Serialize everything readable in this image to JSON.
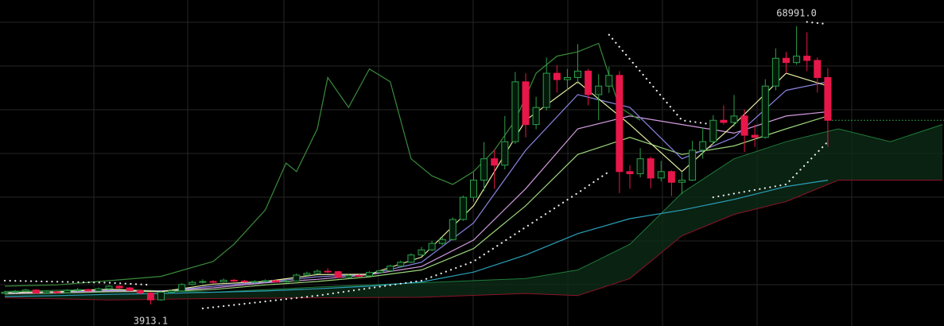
{
  "chart_data": {
    "type": "candlestick",
    "high_label": "68991.0",
    "low_label": "3913.1",
    "up_color": "#2e9e4a",
    "down_color": "#e8174a",
    "open": [
      6500,
      6800,
      7000,
      7300,
      6600,
      6900,
      6700,
      7200,
      7400,
      7100,
      7600,
      8200,
      7800,
      7200,
      6600,
      5000,
      6800,
      7100,
      8600,
      9100,
      9300,
      9200,
      9600,
      9400,
      9200,
      9300,
      9500,
      9200,
      9400,
      10800,
      11200,
      11700,
      11600,
      10300,
      10700,
      10600,
      11400,
      11800,
      12900,
      13800,
      15500,
      16700,
      18200,
      19100,
      23800,
      29000,
      33000,
      38000,
      36500,
      42000,
      56000,
      46000,
      50000,
      58000,
      56500,
      57000,
      58500,
      53000,
      55000,
      57500,
      35000,
      34500,
      38000,
      33500,
      35000,
      32500,
      33000,
      40000,
      42000,
      47000,
      46500,
      48000,
      43500,
      43000,
      55000,
      61500,
      60500,
      62000,
      61000,
      57000
    ],
    "high": [
      7100,
      7300,
      7600,
      7500,
      7200,
      7100,
      7500,
      7800,
      7600,
      7900,
      8500,
      8400,
      8000,
      7400,
      6800,
      7000,
      7400,
      8900,
      9500,
      9800,
      9600,
      10000,
      9900,
      9700,
      9600,
      9800,
      9700,
      9700,
      11200,
      11600,
      12100,
      12400,
      11800,
      11000,
      11000,
      11700,
      12000,
      13200,
      14200,
      15900,
      17400,
      18800,
      19800,
      24300,
      29400,
      34800,
      41900,
      40100,
      48000,
      58300,
      58000,
      52500,
      61700,
      59900,
      59000,
      64800,
      59000,
      57800,
      59500,
      58500,
      36500,
      40500,
      38500,
      37500,
      35300,
      35000,
      42200,
      45300,
      48200,
      50500,
      52900,
      49500,
      46000,
      56600,
      63800,
      63000,
      68991,
      67600,
      61700,
      59200
    ],
    "low": [
      6300,
      6600,
      6800,
      6400,
      6400,
      6500,
      6600,
      7000,
      6900,
      7000,
      7400,
      7500,
      7000,
      6300,
      3913.1,
      4800,
      6500,
      6900,
      8400,
      8800,
      8900,
      9000,
      9200,
      9000,
      8900,
      9100,
      9000,
      9000,
      9300,
      10600,
      11000,
      11300,
      10000,
      10100,
      10400,
      10500,
      11200,
      11600,
      12700,
      13600,
      15200,
      16400,
      17800,
      18900,
      23500,
      28000,
      30400,
      31000,
      35500,
      41500,
      43000,
      44900,
      49300,
      53500,
      54000,
      55500,
      50500,
      47000,
      53400,
      30000,
      31000,
      33600,
      31100,
      32700,
      29300,
      29700,
      32800,
      38000,
      41500,
      46000,
      45500,
      39600,
      40800,
      42700,
      54000,
      58000,
      60000,
      58500,
      53500,
      40800
    ],
    "close": [
      6800,
      7000,
      7300,
      6600,
      6900,
      6700,
      7200,
      7400,
      7100,
      7600,
      8200,
      7800,
      7200,
      6600,
      5000,
      6800,
      7100,
      8600,
      9100,
      9300,
      9200,
      9600,
      9400,
      9200,
      9300,
      9500,
      9200,
      9400,
      10800,
      11200,
      11700,
      11600,
      10300,
      10700,
      10600,
      11400,
      11800,
      12900,
      13800,
      15500,
      16700,
      18200,
      19100,
      23800,
      29000,
      33000,
      38000,
      36500,
      42000,
      56000,
      46000,
      50000,
      58000,
      56500,
      57000,
      58500,
      53000,
      55000,
      57500,
      35000,
      34500,
      38000,
      33500,
      35000,
      32500,
      33000,
      40000,
      42000,
      47000,
      46500,
      48000,
      43500,
      43000,
      55000,
      61500,
      60500,
      62000,
      61000,
      57000,
      47000
    ],
    "cloud": {
      "x": [
        0,
        10,
        20,
        30,
        40,
        50,
        55,
        60,
        65,
        70,
        75,
        80,
        85,
        90
      ],
      "span_a": [
        7000,
        7500,
        6800,
        8000,
        9000,
        10000,
        12000,
        18000,
        30000,
        38000,
        42000,
        45000,
        42000,
        46000
      ],
      "span_b": [
        5500,
        5000,
        5300,
        5500,
        5600,
        6500,
        6000,
        10000,
        20000,
        25000,
        28000,
        33000,
        33000,
        33000
      ],
      "span_a_color": "#1f7a3a",
      "span_b_color": "#8a1428",
      "fill": "#0d2a16"
    },
    "lines": [
      {
        "color": "#2aa0b8",
        "x": [
          0,
          5,
          10,
          15,
          20,
          25,
          30,
          35,
          40,
          45,
          50,
          55,
          60,
          65,
          70,
          75,
          79
        ],
        "values": [
          5800,
          6000,
          6300,
          6500,
          6800,
          7100,
          7600,
          8200,
          9200,
          11500,
          15500,
          20500,
          24000,
          26000,
          28500,
          31500,
          33000
        ]
      },
      {
        "color": "#9bd47a",
        "x": [
          0,
          5,
          10,
          15,
          20,
          25,
          30,
          35,
          40,
          45,
          50,
          55,
          60,
          65,
          70,
          75,
          79
        ],
        "values": [
          6400,
          6600,
          6900,
          7000,
          7400,
          8500,
          9300,
          10400,
          12000,
          17000,
          27000,
          39000,
          43000,
          39000,
          41000,
          45000,
          48000
        ]
      },
      {
        "color": "#d29be0",
        "x": [
          0,
          5,
          10,
          15,
          20,
          25,
          30,
          35,
          40,
          45,
          50,
          55,
          60,
          65,
          70,
          75,
          79
        ],
        "values": [
          6500,
          6700,
          7100,
          7100,
          7800,
          9000,
          9800,
          10900,
          12800,
          19000,
          31000,
          45000,
          48000,
          46000,
          44000,
          48000,
          49000
        ]
      },
      {
        "color": "#8a84e0",
        "x": [
          0,
          5,
          10,
          15,
          20,
          25,
          30,
          35,
          40,
          45,
          50,
          55,
          60,
          65,
          70,
          75,
          79
        ],
        "values": [
          6600,
          6800,
          7300,
          7000,
          8200,
          9200,
          10400,
          11000,
          13800,
          23000,
          40000,
          53000,
          50000,
          38000,
          43000,
          54000,
          56000
        ]
      },
      {
        "color": "#e6eca0",
        "x": [
          0,
          5,
          10,
          15,
          20,
          25,
          30,
          35,
          40,
          45,
          50,
          55,
          60,
          65,
          70,
          75,
          79
        ],
        "values": [
          6700,
          6900,
          7500,
          6900,
          8700,
          9300,
          10900,
          11000,
          15000,
          27000,
          47000,
          56000,
          46000,
          35000,
          46000,
          58000,
          55000
        ]
      },
      {
        "color": "#3a8a3a",
        "x": [
          0,
          5,
          10,
          15,
          20,
          22,
          25,
          27,
          28,
          30,
          31,
          33,
          35,
          37,
          39,
          41,
          43,
          45,
          47,
          49,
          51,
          53,
          55,
          57,
          59,
          61
        ],
        "values": [
          8200,
          8500,
          9500,
          10500,
          14000,
          18000,
          26000,
          37000,
          35000,
          45000,
          57000,
          50000,
          59000,
          56000,
          38000,
          34000,
          32000,
          35000,
          40000,
          47000,
          58000,
          62000,
          63000,
          65000,
          50000,
          47000
        ]
      }
    ],
    "sar_color": "#e8e8e8",
    "sar": [
      {
        "x": [
          0,
          10,
          14
        ],
        "values": [
          9500,
          9000,
          8500
        ]
      },
      {
        "x": [
          19,
          30,
          40,
          45,
          50,
          55,
          58
        ],
        "values": [
          3000,
          6000,
          9500,
          14000,
          22000,
          30000,
          35000
        ]
      },
      {
        "x": [
          58,
          65,
          68
        ],
        "values": [
          67000,
          47000,
          46000
        ]
      },
      {
        "x": [
          68,
          75,
          79
        ],
        "values": [
          29000,
          32000,
          42000
        ]
      },
      {
        "x": [
          77,
          79
        ],
        "values": [
          70000,
          69500
        ]
      }
    ]
  }
}
